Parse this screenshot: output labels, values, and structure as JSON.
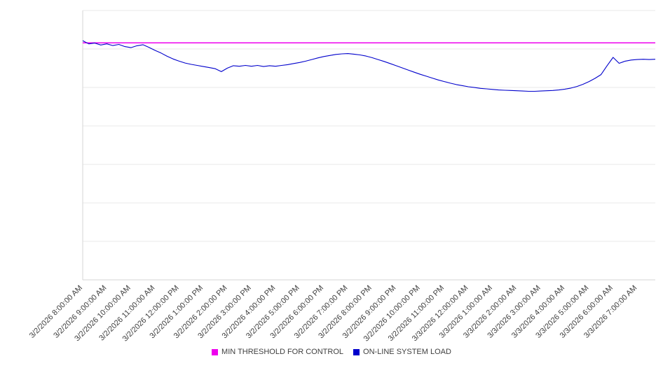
{
  "chart_data": {
    "type": "line",
    "title": "",
    "xlabel": "",
    "ylabel": "",
    "grid": "horizontal",
    "gridline_count": 8,
    "legend_position": "bottom-center",
    "y_axis_labels_visible": false,
    "ylim": [
      0,
      100
    ],
    "x_range_hours": [
      0,
      23.75
    ],
    "x_tick_labels": [
      "3/2/2026 8:00:00 AM",
      "3/2/2026 9:00:00 AM",
      "3/2/2026 10:00:00 AM",
      "3/2/2026 11:00:00 AM",
      "3/2/2026 12:00:00 PM",
      "3/2/2026 1:00:00 PM",
      "3/2/2026 2:00:00 PM",
      "3/2/2026 3:00:00 PM",
      "3/2/2026 4:00:00 PM",
      "3/2/2026 5:00:00 PM",
      "3/2/2026 6:00:00 PM",
      "3/2/2026 7:00:00 PM",
      "3/2/2026 8:00:00 PM",
      "3/2/2026 9:00:00 PM",
      "3/2/2026 10:00:00 PM",
      "3/2/2026 11:00:00 PM",
      "3/3/2026 12:00:00 AM",
      "3/3/2026 1:00:00 AM",
      "3/3/2026 2:00:00 AM",
      "3/3/2026 3:00:00 AM",
      "3/3/2026 4:00:00 AM",
      "3/3/2026 5:00:00 AM",
      "3/3/2026 6:00:00 AM",
      "3/3/2026 7:00:00 AM"
    ],
    "series": [
      {
        "name": "MIN THRESHOLD FOR CONTROL",
        "type": "constant",
        "color": "#ee00ee",
        "value": 88
      },
      {
        "name": "ON-LINE SYSTEM LOAD",
        "type": "line",
        "color": "#0000cc",
        "x_start_hours": 0,
        "x_step_hours": 0.25,
        "values": [
          88.8,
          87.6,
          87.9,
          87.2,
          87.6,
          87.0,
          87.4,
          86.6,
          86.2,
          86.9,
          87.3,
          86.3,
          85.2,
          84.2,
          83.0,
          82.0,
          81.2,
          80.5,
          80.0,
          79.6,
          79.2,
          78.8,
          78.4,
          77.3,
          78.6,
          79.5,
          79.3,
          79.6,
          79.3,
          79.6,
          79.2,
          79.5,
          79.3,
          79.6,
          79.9,
          80.3,
          80.7,
          81.2,
          81.8,
          82.4,
          82.9,
          83.3,
          83.7,
          83.9,
          84.0,
          83.8,
          83.5,
          83.1,
          82.5,
          81.8,
          81.1,
          80.3,
          79.5,
          78.7,
          77.9,
          77.1,
          76.3,
          75.6,
          74.9,
          74.2,
          73.6,
          73.0,
          72.5,
          72.1,
          71.7,
          71.4,
          71.1,
          70.9,
          70.7,
          70.5,
          70.4,
          70.3,
          70.2,
          70.1,
          70.0,
          70.0,
          70.1,
          70.2,
          70.3,
          70.5,
          70.8,
          71.2,
          71.8,
          72.6,
          73.6,
          74.8,
          76.2,
          79.5,
          82.6,
          80.4,
          81.2,
          81.6,
          81.8,
          81.9,
          81.8,
          81.9
        ]
      }
    ],
    "colors": {
      "gridline": "#e8e8e8",
      "axis": "#d6d6d6",
      "tick_text": "#3f3f3f"
    }
  }
}
